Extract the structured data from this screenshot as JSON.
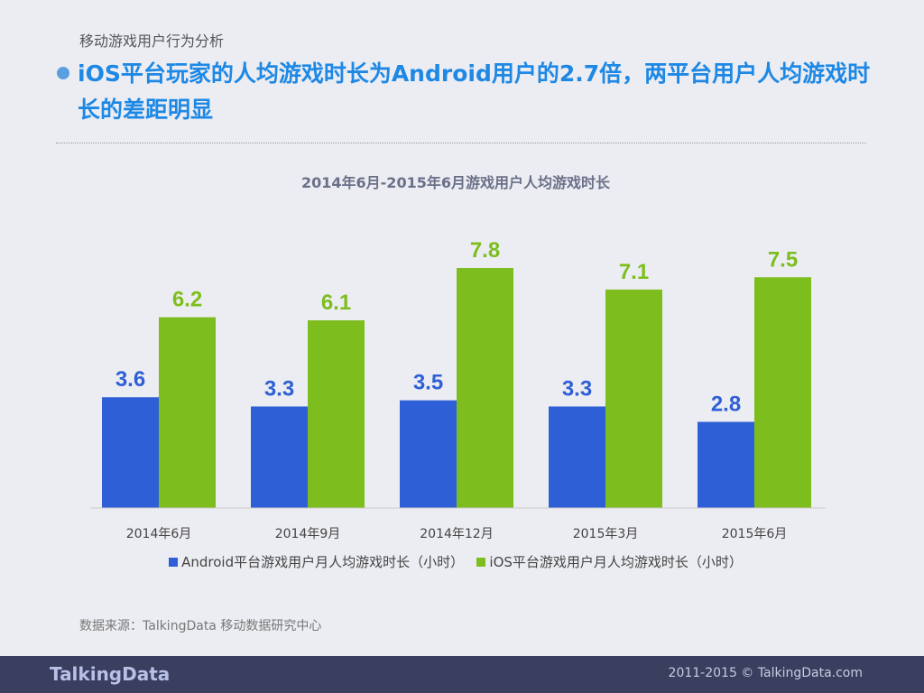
{
  "section": "移动游戏用户行为分析",
  "headline": "iOS平台玩家的人均游戏时长为Android用户的2.7倍，两平台用户人均游戏时长的差距明显",
  "source": "数据来源：TalkingData 移动数据研究中心",
  "footer": {
    "logo": "TalkingData",
    "copyright": "2011-2015 © TalkingData.com"
  },
  "chart_data": {
    "type": "bar",
    "title": "2014年6月-2015年6月游戏用户人均游戏时长",
    "categories": [
      "2014年6月",
      "2014年9月",
      "2014年12月",
      "2015年3月",
      "2015年6月"
    ],
    "series": [
      {
        "name": "Android平台游戏用户月人均游戏时长（小时）",
        "color": "#2f5fd6",
        "values": [
          3.6,
          3.3,
          3.5,
          3.3,
          2.8
        ]
      },
      {
        "name": "iOS平台游戏用户月人均游戏时长（小时）",
        "color": "#7dbe1e",
        "values": [
          6.2,
          6.1,
          7.8,
          7.1,
          7.5
        ]
      }
    ],
    "ylim": [
      0,
      8
    ],
    "grid": false,
    "legend": "bottom"
  }
}
